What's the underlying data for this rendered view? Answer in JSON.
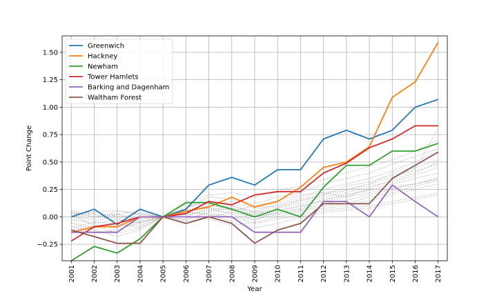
{
  "chart_data": {
    "type": "line",
    "xlabel": "Year",
    "ylabel": "Point Change",
    "x": [
      2001,
      2002,
      2003,
      2004,
      2005,
      2006,
      2007,
      2008,
      2009,
      2010,
      2011,
      2012,
      2013,
      2014,
      2015,
      2016,
      2017
    ],
    "ylim": [
      -0.4,
      1.65
    ],
    "yticks": [
      -0.25,
      0.0,
      0.25,
      0.5,
      0.75,
      1.0,
      1.25,
      1.5
    ],
    "ytick_labels": [
      "−0.25",
      "0.00",
      "0.25",
      "0.50",
      "0.75",
      "1.00",
      "1.25",
      "1.50"
    ],
    "grid": true,
    "legend_position": "top-left",
    "series": [
      {
        "name": "Greenwich",
        "color": "#1f77b4",
        "values": [
          0.0,
          0.07,
          -0.07,
          0.07,
          0.0,
          0.07,
          0.29,
          0.36,
          0.29,
          0.43,
          0.43,
          0.71,
          0.79,
          0.71,
          0.79,
          1.0,
          1.07
        ]
      },
      {
        "name": "Hackney",
        "color": "#ff7f0e",
        "values": [
          -0.14,
          -0.09,
          -0.09,
          0.0,
          0.0,
          0.05,
          0.09,
          0.18,
          0.09,
          0.14,
          0.27,
          0.45,
          0.5,
          0.64,
          1.09,
          1.23,
          1.59
        ]
      },
      {
        "name": "Newham",
        "color": "#2ca02c",
        "values": [
          -0.4,
          -0.27,
          -0.33,
          -0.2,
          0.0,
          0.13,
          0.13,
          0.07,
          0.0,
          0.07,
          0.0,
          0.27,
          0.47,
          0.47,
          0.6,
          0.6,
          0.67
        ]
      },
      {
        "name": "Tower Hamlets",
        "color": "#d62728",
        "values": [
          -0.22,
          -0.09,
          -0.06,
          0.0,
          0.0,
          0.03,
          0.14,
          0.11,
          0.2,
          0.23,
          0.23,
          0.4,
          0.49,
          0.63,
          0.71,
          0.83,
          0.83
        ]
      },
      {
        "name": "Barking and Dagenham",
        "color": "#9467bd",
        "values": [
          -0.14,
          -0.14,
          -0.14,
          0.0,
          0.0,
          0.0,
          0.0,
          0.0,
          -0.14,
          -0.14,
          -0.14,
          0.14,
          0.14,
          0.0,
          0.29,
          0.14,
          0.0
        ]
      },
      {
        "name": "Waltham Forest",
        "color": "#8c564b",
        "values": [
          -0.12,
          -0.18,
          -0.24,
          -0.24,
          0.0,
          -0.06,
          0.0,
          -0.06,
          -0.24,
          -0.12,
          -0.06,
          0.12,
          0.12,
          0.12,
          0.35,
          0.47,
          0.59
        ]
      }
    ],
    "background_series": [
      [
        0.05,
        0.0,
        0.03,
        -0.05,
        0.0,
        0.08,
        0.15,
        0.1,
        0.05,
        0.12,
        0.18,
        0.25,
        0.3,
        0.35,
        0.42,
        0.5,
        0.6
      ],
      [
        -0.05,
        -0.1,
        -0.08,
        -0.02,
        0.0,
        0.05,
        0.02,
        0.0,
        -0.03,
        0.05,
        0.1,
        0.15,
        0.2,
        0.25,
        0.3,
        0.35,
        0.4
      ],
      [
        0.02,
        0.05,
        0.0,
        0.02,
        0.0,
        -0.03,
        0.05,
        0.08,
        0.02,
        0.08,
        0.12,
        0.18,
        0.22,
        0.28,
        0.32,
        0.38,
        0.45
      ],
      [
        -0.12,
        -0.08,
        -0.15,
        -0.1,
        0.0,
        0.02,
        0.06,
        0.04,
        0.0,
        0.03,
        0.07,
        0.12,
        0.15,
        0.2,
        0.25,
        0.3,
        0.35
      ],
      [
        0.0,
        -0.02,
        0.05,
        0.03,
        0.0,
        0.1,
        0.12,
        0.06,
        0.1,
        0.15,
        0.2,
        0.22,
        0.25,
        0.3,
        0.4,
        0.45,
        0.52
      ],
      [
        -0.08,
        -0.15,
        -0.12,
        -0.05,
        0.0,
        0.0,
        -0.02,
        -0.08,
        -0.05,
        0.0,
        0.05,
        0.08,
        0.1,
        0.15,
        0.2,
        0.25,
        0.3
      ],
      [
        0.06,
        0.02,
        -0.04,
        0.0,
        0.0,
        0.04,
        0.1,
        0.14,
        0.08,
        0.1,
        0.15,
        0.2,
        0.28,
        0.32,
        0.38,
        0.42,
        0.48
      ],
      [
        -0.03,
        -0.06,
        -0.02,
        -0.06,
        0.0,
        0.06,
        0.08,
        0.02,
        -0.02,
        0.02,
        0.06,
        0.1,
        0.12,
        0.18,
        0.22,
        0.28,
        0.33
      ],
      [
        0.03,
        0.04,
        0.06,
        0.02,
        0.0,
        0.08,
        0.18,
        0.16,
        0.12,
        0.18,
        0.22,
        0.3,
        0.35,
        0.4,
        0.48,
        0.55,
        0.62
      ],
      [
        -0.1,
        -0.05,
        -0.06,
        -0.08,
        0.0,
        -0.02,
        0.04,
        0.0,
        -0.06,
        -0.02,
        0.02,
        0.06,
        0.08,
        0.1,
        0.14,
        0.18,
        0.22
      ],
      [
        0.0,
        0.03,
        -0.02,
        0.04,
        0.0,
        0.02,
        0.06,
        0.1,
        0.04,
        0.06,
        0.1,
        0.14,
        0.18,
        0.22,
        0.26,
        0.3,
        0.34
      ],
      [
        -0.06,
        -0.12,
        -0.18,
        -0.12,
        0.0,
        0.04,
        0.02,
        -0.04,
        -0.1,
        -0.06,
        0.0,
        0.04,
        0.06,
        0.08,
        0.12,
        0.16,
        0.2
      ],
      [
        0.04,
        0.0,
        0.02,
        0.06,
        0.0,
        0.12,
        0.2,
        0.22,
        0.18,
        0.24,
        0.28,
        0.34,
        0.4,
        0.46,
        0.52,
        0.6,
        0.7
      ],
      [
        -0.02,
        -0.04,
        0.02,
        -0.02,
        0.0,
        -0.04,
        0.0,
        0.04,
        0.0,
        0.04,
        0.08,
        0.16,
        0.2,
        0.24,
        0.28,
        0.3,
        0.36
      ],
      [
        0.02,
        -0.08,
        -0.1,
        -0.04,
        0.0,
        0.0,
        0.08,
        0.06,
        0.02,
        0.08,
        0.14,
        0.2,
        0.24,
        0.3,
        0.36,
        0.44,
        0.8
      ],
      [
        -0.14,
        -0.1,
        -0.06,
        -0.1,
        0.0,
        0.06,
        0.1,
        0.08,
        0.04,
        0.1,
        0.16,
        0.22,
        0.18,
        0.26,
        0.34,
        0.4,
        0.5
      ]
    ]
  }
}
